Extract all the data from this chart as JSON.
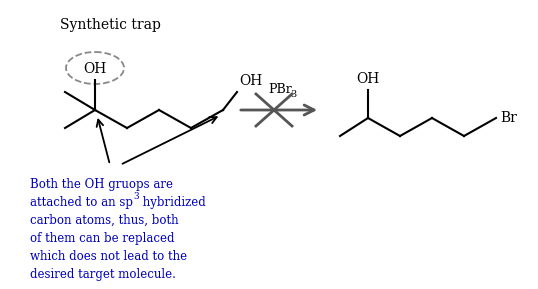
{
  "title": "Synthetic trap",
  "blue_text_lines": [
    "Both the OH gruops are",
    "attached to an sp",
    " hybridized",
    "carbon atoms, thus, both",
    "of them can be replaced",
    "which does not lead to the",
    "desired target molecule."
  ],
  "reagent_text": "PBr",
  "reagent_sub": "3",
  "oh_label": "OH",
  "br_label": "Br",
  "bg_color": "#ffffff",
  "text_color": "#000000",
  "blue_color": "#0000bb",
  "line_color": "#000000",
  "dashed_color": "#888888"
}
